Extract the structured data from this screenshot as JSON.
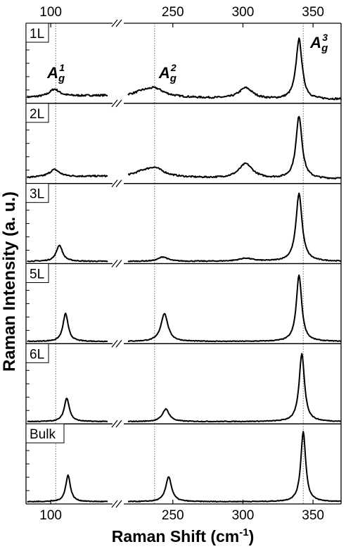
{
  "chart_data": {
    "type": "line",
    "xlabel": "Raman Shift (cm",
    "xlabel_sup": "-1",
    "xlabel_end": ")",
    "ylabel": "Raman Intensity (a. u.)",
    "x_ticks": [
      "100",
      "250",
      "300",
      "350"
    ],
    "x_tick_values": [
      100,
      250,
      300,
      350
    ],
    "axis_segments": [
      {
        "xlim": [
          80,
          150
        ]
      },
      {
        "xlim": [
          215,
          370
        ]
      }
    ],
    "reference_lines": [
      104,
      237,
      343
    ],
    "peak_labels": [
      {
        "text": "A",
        "sub": "g",
        "sup": "1",
        "x": 104,
        "panel": 0
      },
      {
        "text": "A",
        "sub": "g",
        "sup": "2",
        "x": 237,
        "panel": 0
      },
      {
        "text": "A",
        "sub": "g",
        "sup": "3",
        "x": 343,
        "panel": 0
      }
    ],
    "series": [
      {
        "name": "1L",
        "baseline": 0.08,
        "noise": 0.012,
        "wave": 0.03,
        "peaks": [
          [
            103,
            0.1,
            5
          ],
          [
            237,
            0.11,
            8
          ],
          [
            302,
            0.15,
            6
          ],
          [
            340,
            0.82,
            2.6
          ],
          [
            228,
            0.04,
            6
          ]
        ]
      },
      {
        "name": "2L",
        "baseline": 0.08,
        "noise": 0.01,
        "wave": 0.02,
        "peaks": [
          [
            103,
            0.1,
            5
          ],
          [
            237,
            0.12,
            8
          ],
          [
            302,
            0.2,
            6
          ],
          [
            340,
            0.85,
            2.6
          ],
          [
            228,
            0.04,
            6
          ]
        ]
      },
      {
        "name": "3L",
        "baseline": 0.03,
        "noise": 0.006,
        "wave": 0.0,
        "peaks": [
          [
            107,
            0.22,
            3
          ],
          [
            243,
            0.06,
            4
          ],
          [
            302,
            0.04,
            6
          ],
          [
            340,
            0.92,
            2.6
          ]
        ]
      },
      {
        "name": "5L",
        "baseline": 0.03,
        "noise": 0.005,
        "wave": 0.0,
        "peaks": [
          [
            112,
            0.38,
            2.5
          ],
          [
            244,
            0.38,
            3
          ],
          [
            340,
            0.9,
            2.3
          ]
        ]
      },
      {
        "name": "6L",
        "baseline": 0.03,
        "noise": 0.005,
        "wave": 0.0,
        "peaks": [
          [
            113,
            0.32,
            2.5
          ],
          [
            245,
            0.17,
            3
          ],
          [
            342,
            0.92,
            2.3
          ]
        ]
      },
      {
        "name": "Bulk",
        "baseline": 0.03,
        "noise": 0.005,
        "wave": 0.0,
        "peaks": [
          [
            114,
            0.36,
            2.3
          ],
          [
            247,
            0.34,
            2.5
          ],
          [
            343,
            0.95,
            2.1
          ]
        ]
      }
    ]
  }
}
